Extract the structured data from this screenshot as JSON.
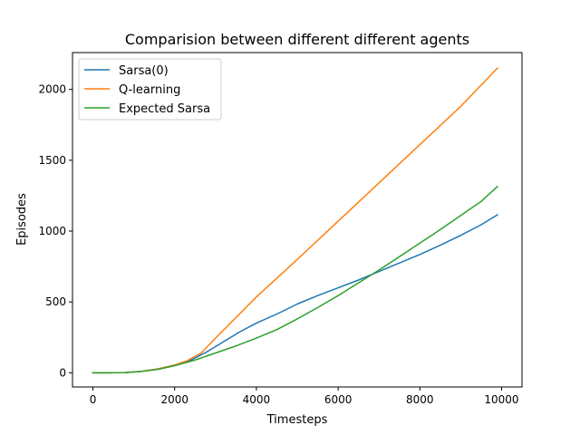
{
  "chart_data": {
    "type": "line",
    "title": "Comparision between different different agents",
    "xlabel": "Timesteps",
    "ylabel": "Episodes",
    "xlim": [
      -500,
      10500
    ],
    "ylim": [
      -100,
      2260
    ],
    "xticks": [
      0,
      2000,
      4000,
      6000,
      8000,
      10000
    ],
    "yticks": [
      0,
      500,
      1000,
      1500,
      2000
    ],
    "legend": "top-left",
    "grid": false,
    "series": [
      {
        "name": "Sarsa(0)",
        "color": "#1f77b4",
        "x": [
          0,
          400,
          800,
          1200,
          1600,
          2000,
          2400,
          2800,
          3200,
          3600,
          4000,
          4500,
          5000,
          5500,
          6000,
          6500,
          7000,
          7500,
          8000,
          8500,
          9000,
          9500,
          9900
        ],
        "y": [
          0,
          0,
          2,
          10,
          28,
          55,
          90,
          150,
          220,
          290,
          350,
          415,
          485,
          545,
          600,
          655,
          715,
          775,
          835,
          900,
          970,
          1045,
          1115
        ]
      },
      {
        "name": "Q-learning",
        "color": "#ff7f0e",
        "x": [
          0,
          400,
          800,
          1200,
          1600,
          2000,
          2300,
          2650,
          3000,
          3500,
          4000,
          5000,
          6000,
          7000,
          8000,
          9000,
          9900
        ],
        "y": [
          0,
          0,
          2,
          10,
          28,
          55,
          85,
          140,
          245,
          390,
          535,
          800,
          1070,
          1340,
          1610,
          1880,
          2150
        ]
      },
      {
        "name": "Expected Sarsa",
        "color": "#2ca02c",
        "x": [
          0,
          400,
          800,
          1200,
          1600,
          2000,
          2500,
          3000,
          3500,
          4000,
          4500,
          5000,
          5500,
          6000,
          6500,
          7000,
          7500,
          8000,
          8500,
          9000,
          9500,
          9900
        ],
        "y": [
          0,
          0,
          2,
          10,
          25,
          50,
          90,
          140,
          190,
          245,
          305,
          380,
          460,
          545,
          635,
          725,
          820,
          915,
          1010,
          1110,
          1210,
          1315
        ]
      }
    ]
  }
}
